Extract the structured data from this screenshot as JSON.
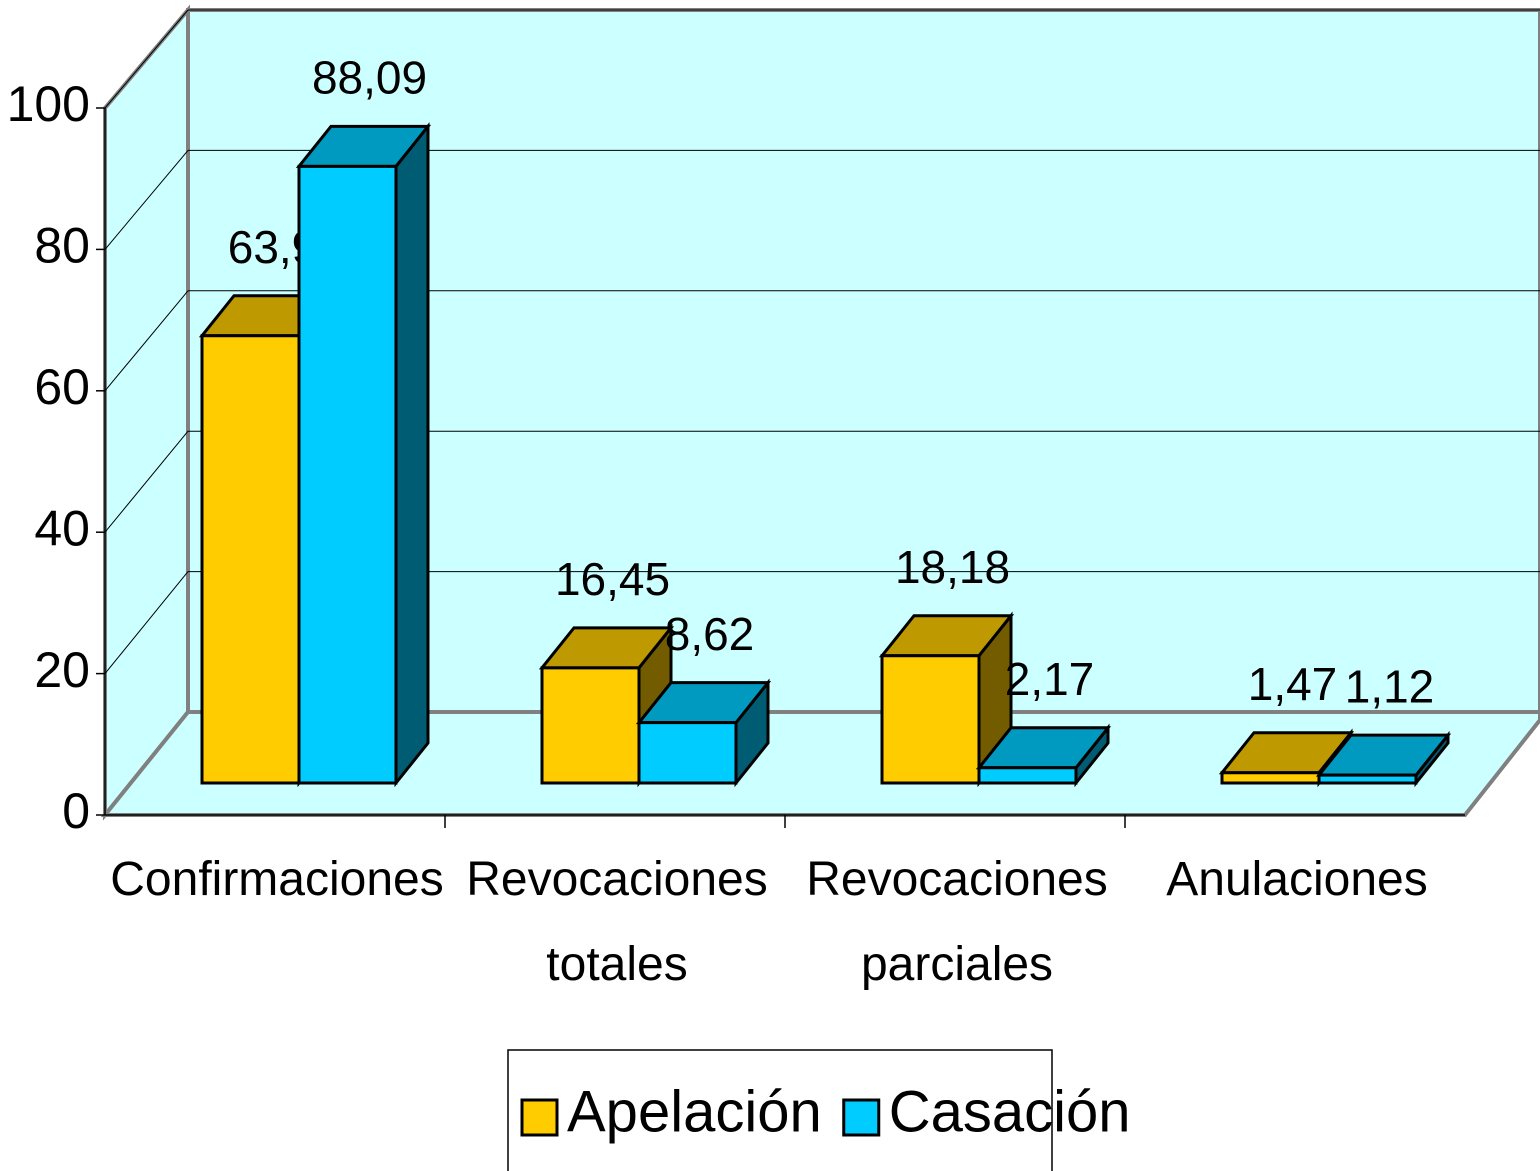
{
  "chart_data": {
    "type": "bar3d",
    "categories": [
      "Confirmaciones",
      "Revocaciones totales",
      "Revocaciones parciales",
      "Anulaciones"
    ],
    "series": [
      {
        "name": "Apelación",
        "color": "#ffcc00",
        "values": [
          63.9,
          16.45,
          18.18,
          1.47
        ],
        "value_labels": [
          "63,9",
          "16,45",
          "18,18",
          "1,47"
        ]
      },
      {
        "name": "Casación",
        "color": "#00ccff",
        "values": [
          88.09,
          8.62,
          2.17,
          1.12
        ],
        "value_labels": [
          "88,09",
          "8,62",
          "2,17",
          "1,12"
        ]
      }
    ],
    "ylim": [
      0,
      100
    ],
    "yticks": [
      0,
      20,
      40,
      60,
      80,
      100
    ],
    "grid": true,
    "legend": "bottom"
  }
}
